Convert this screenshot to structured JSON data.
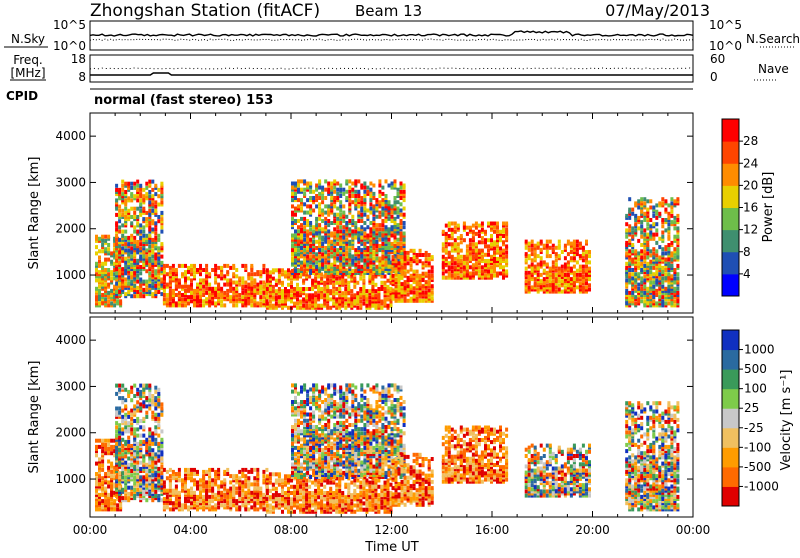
{
  "header": {
    "station": "Zhongshan Station (fitACF)",
    "beam": "Beam 13",
    "date": "07/May/2013"
  },
  "top_panel": {
    "left_label": "N.Sky",
    "left_ticks": [
      "10^5",
      "10^0"
    ],
    "right_label": "N.Search",
    "right_ticks": [
      "10^5",
      "10^0"
    ]
  },
  "freq_panel": {
    "left_label_line1": "Freq.",
    "left_label_line2": "[MHz]",
    "left_ticks": [
      "18",
      "8"
    ],
    "right_label": "Nave",
    "right_ticks": [
      "60",
      "0"
    ]
  },
  "cpid": {
    "label": "CPID",
    "value": "normal (fast stereo) 153"
  },
  "colors": {
    "power": [
      "#0000ff",
      "#1f4fb4",
      "#3f8f6f",
      "#6ebe4a",
      "#e8d000",
      "#ff8c00",
      "#ff4500",
      "#ff0000"
    ],
    "velocity": [
      "#e00000",
      "#ff6a00",
      "#ff9c00",
      "#f0c060",
      "#c8c8c8",
      "#7ecb4a",
      "#3a9a5a",
      "#2a6aa0",
      "#1030c0"
    ]
  },
  "chart_data": [
    {
      "type": "heatmap",
      "name": "power-panel",
      "xlabel": "",
      "ylabel": "Slant Range [km]",
      "x_range_hours": [
        0,
        24
      ],
      "ylim": [
        180,
        4500
      ],
      "y_ticks": [
        1000,
        2000,
        3000,
        4000
      ],
      "colorbar": {
        "label": "Power [dB]",
        "range": [
          0,
          32
        ],
        "ticks": [
          4,
          8,
          12,
          16,
          20,
          24,
          28
        ]
      },
      "echo_regions": [
        {
          "t0": 0.2,
          "t1": 1.2,
          "r0": 300,
          "r1": 1800,
          "level": "mid"
        },
        {
          "t0": 1.0,
          "t1": 2.9,
          "r0": 500,
          "r1": 3000,
          "level": "mixed"
        },
        {
          "t0": 2.9,
          "t1": 7.0,
          "r0": 300,
          "r1": 1200,
          "level": "high"
        },
        {
          "t0": 7.0,
          "t1": 12.0,
          "r0": 250,
          "r1": 1100,
          "level": "high"
        },
        {
          "t0": 8.0,
          "t1": 12.5,
          "r0": 1000,
          "r1": 3000,
          "level": "mixed"
        },
        {
          "t0": 12.0,
          "t1": 13.6,
          "r0": 400,
          "r1": 1500,
          "level": "high"
        },
        {
          "t0": 14.0,
          "t1": 16.6,
          "r0": 900,
          "r1": 2100,
          "level": "high"
        },
        {
          "t0": 17.3,
          "t1": 19.9,
          "r0": 600,
          "r1": 1700,
          "level": "high"
        },
        {
          "t0": 21.3,
          "t1": 23.4,
          "r0": 300,
          "r1": 2600,
          "level": "mixed"
        }
      ]
    },
    {
      "type": "heatmap",
      "name": "velocity-panel",
      "xlabel": "Time UT",
      "ylabel": "Slant Range [km]",
      "x_range_hours": [
        0,
        24
      ],
      "x_ticks": [
        "00:00",
        "04:00",
        "08:00",
        "12:00",
        "16:00",
        "20:00",
        "00:00"
      ],
      "ylim": [
        180,
        4500
      ],
      "y_ticks": [
        1000,
        2000,
        3000,
        4000
      ],
      "colorbar": {
        "label": "Velocity [m s⁻¹]",
        "ticks": [
          "1000",
          "500",
          "100",
          "25",
          "-25",
          "-100",
          "-500",
          "-1000"
        ]
      },
      "echo_regions": [
        {
          "t0": 0.2,
          "t1": 1.2,
          "r0": 300,
          "r1": 1800,
          "level": "neg"
        },
        {
          "t0": 1.0,
          "t1": 2.9,
          "r0": 500,
          "r1": 3000,
          "level": "mixed"
        },
        {
          "t0": 2.9,
          "t1": 7.0,
          "r0": 300,
          "r1": 1200,
          "level": "neg"
        },
        {
          "t0": 7.0,
          "t1": 12.0,
          "r0": 250,
          "r1": 1100,
          "level": "neg"
        },
        {
          "t0": 8.0,
          "t1": 12.5,
          "r0": 1000,
          "r1": 3000,
          "level": "mixed"
        },
        {
          "t0": 12.0,
          "t1": 13.6,
          "r0": 400,
          "r1": 1500,
          "level": "neg"
        },
        {
          "t0": 14.0,
          "t1": 16.6,
          "r0": 900,
          "r1": 2100,
          "level": "neg"
        },
        {
          "t0": 17.3,
          "t1": 19.9,
          "r0": 600,
          "r1": 1700,
          "level": "mixed"
        },
        {
          "t0": 21.3,
          "t1": 23.4,
          "r0": 300,
          "r1": 2600,
          "level": "mixed"
        }
      ]
    }
  ]
}
